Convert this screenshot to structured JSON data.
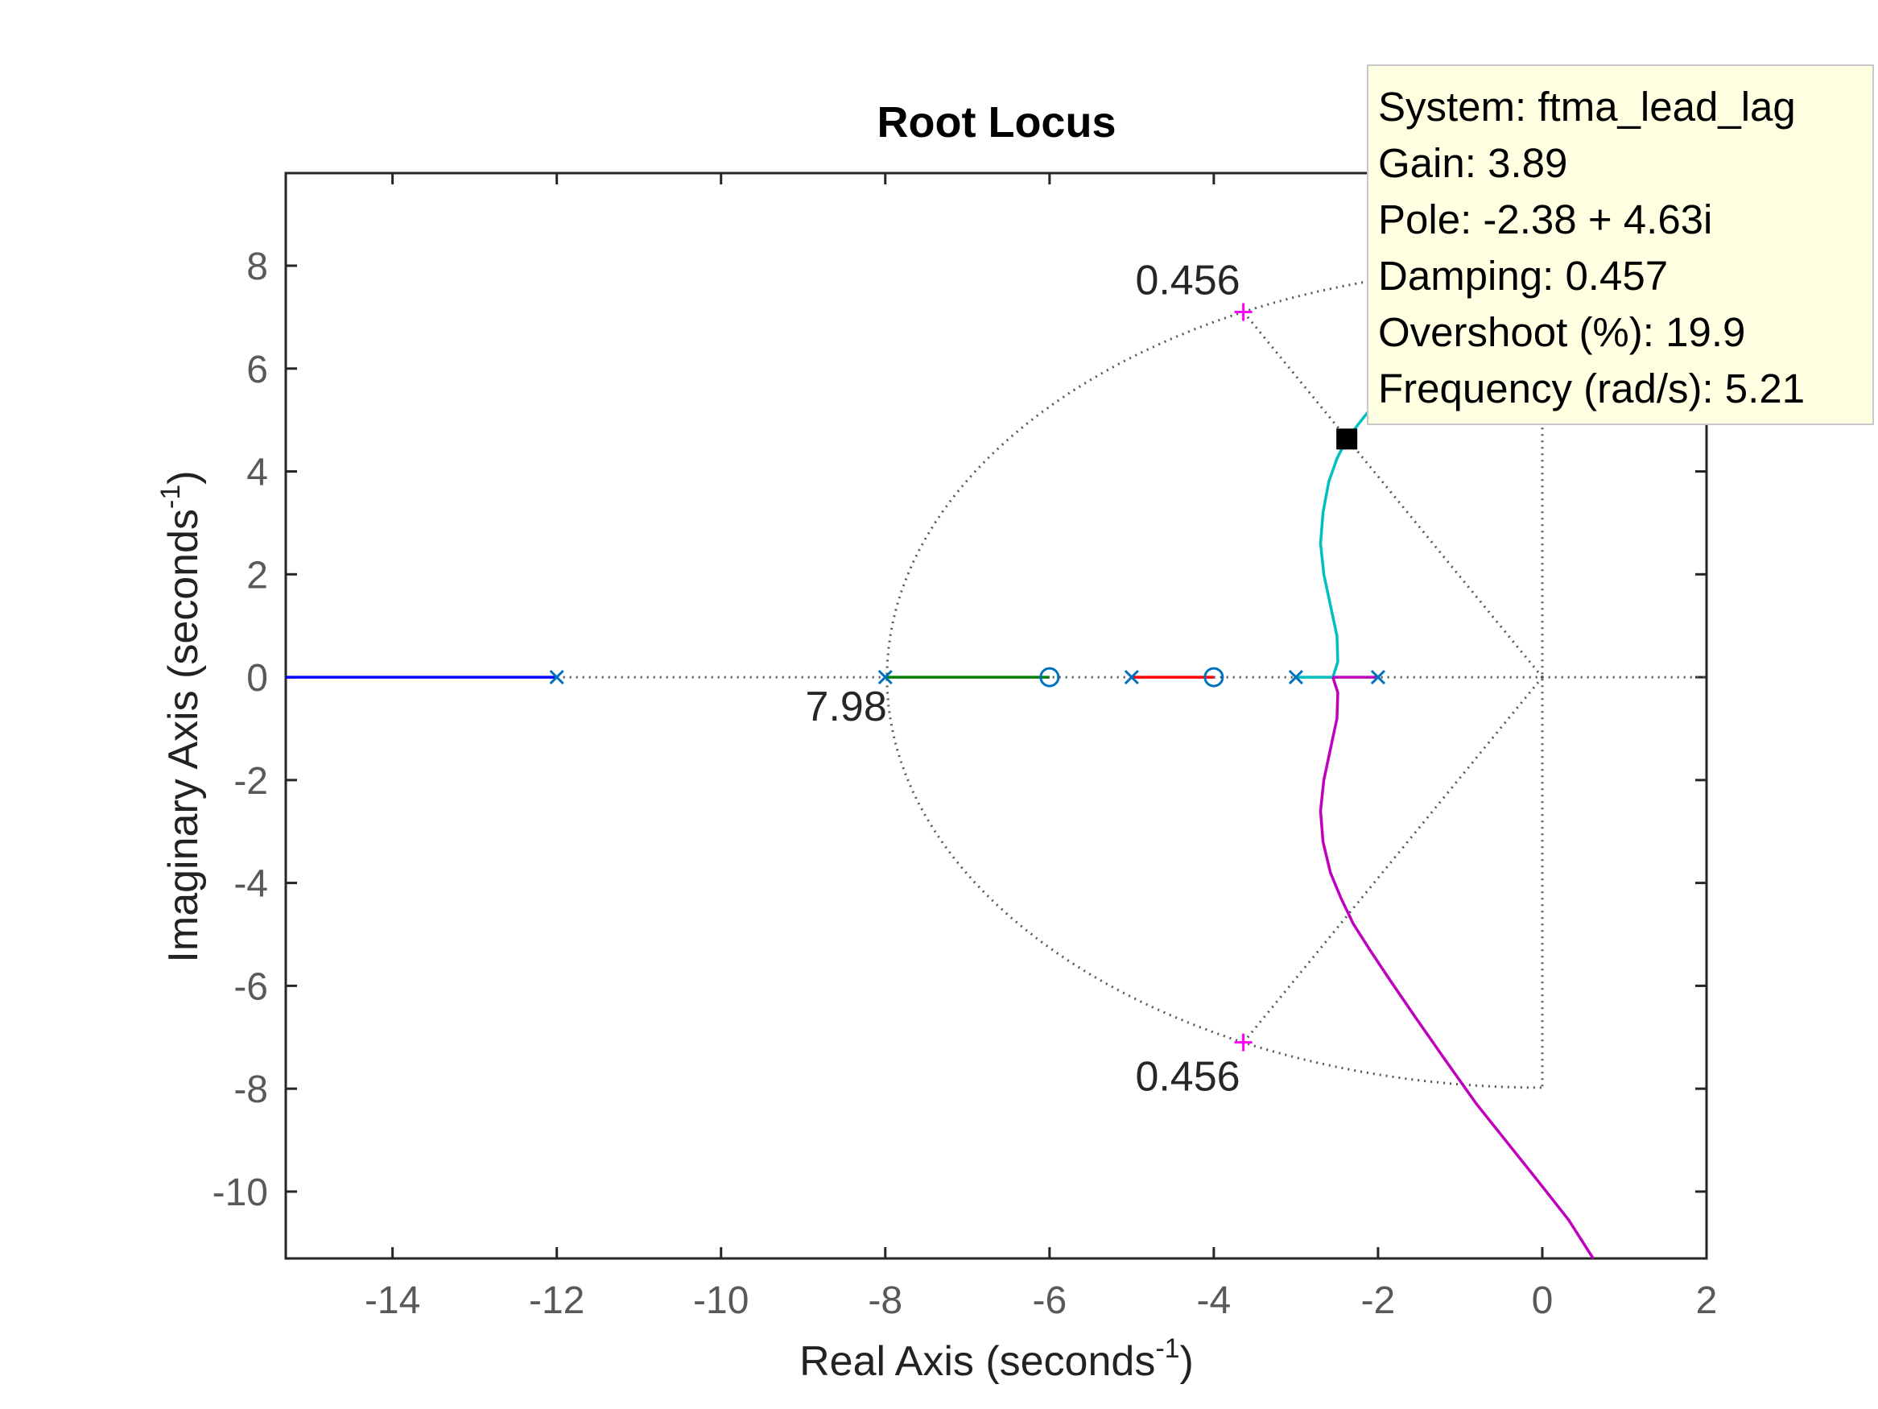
{
  "chart_data": {
    "type": "line",
    "title": "Root Locus",
    "xlabel": "Real Axis (seconds",
    "xlabel_sup": "-1",
    "xlabel_close": ")",
    "ylabel": "Imaginary Axis (seconds",
    "ylabel_sup": "-1",
    "ylabel_close": ")",
    "xlim": [
      -15.3,
      2
    ],
    "ylim": [
      -11.3,
      9.8
    ],
    "xticks": [
      -14,
      -12,
      -10,
      -8,
      -6,
      -4,
      -2,
      0,
      2
    ],
    "xtick_labels": [
      "-14",
      "-12",
      "-10",
      "-8",
      "-6",
      "-4",
      "-2",
      "0",
      "2"
    ],
    "yticks": [
      8,
      6,
      4,
      2,
      0,
      -2,
      -4,
      -6,
      -8,
      -10
    ],
    "ytick_labels": [
      "8",
      "6",
      "4",
      "2",
      "0",
      "-2",
      "-4",
      "-6",
      "-8",
      "-10"
    ],
    "poles": [
      [
        -12,
        0
      ],
      [
        -8,
        0
      ],
      [
        -5,
        0
      ],
      [
        -3,
        0
      ],
      [
        -2,
        0
      ]
    ],
    "zeros": [
      [
        -6,
        0
      ],
      [
        -4,
        0
      ]
    ],
    "design_points": [
      [
        -3.64,
        7.1
      ],
      [
        -3.64,
        -7.1
      ]
    ],
    "selected_point": [
      -2.38,
      4.63
    ],
    "series": [
      {
        "color": "#0000ff",
        "x": [
          -15.3,
          -12
        ],
        "y": [
          0,
          0
        ]
      },
      {
        "color": "#008000",
        "x": [
          -8,
          -6
        ],
        "y": [
          0,
          0
        ]
      },
      {
        "color": "#ff0000",
        "x": [
          -5,
          -4
        ],
        "y": [
          0,
          0
        ]
      },
      {
        "color": "#00bfbf",
        "x": [
          -3,
          -2.55,
          -2.49,
          -2.5,
          -2.58,
          -2.66,
          -2.7,
          -2.67,
          -2.6,
          -2.5,
          -2.38,
          -2.2,
          -2.0,
          -1.8
        ],
        "y": [
          0,
          0,
          0.3,
          0.8,
          1.4,
          2.0,
          2.6,
          3.2,
          3.8,
          4.25,
          4.63,
          5.0,
          5.4,
          5.8
        ]
      },
      {
        "color": "#bf00bf",
        "x": [
          -2,
          -2.55
        ],
        "y": [
          0,
          0
        ]
      },
      {
        "color": "#bf00bf",
        "x": [
          -2.55,
          -2.49,
          -2.5,
          -2.58,
          -2.66,
          -2.7,
          -2.67,
          -2.58,
          -2.45,
          -2.3,
          -2.1,
          -1.85,
          -1.55,
          -1.2,
          -0.8,
          -0.4,
          0.0,
          0.32,
          0.62
        ],
        "y": [
          0,
          -0.3,
          -0.8,
          -1.4,
          -2.0,
          -2.6,
          -3.2,
          -3.8,
          -4.3,
          -4.8,
          -5.3,
          -5.9,
          -6.6,
          -7.4,
          -8.3,
          -9.1,
          -9.9,
          -10.55,
          -11.3
        ]
      }
    ],
    "grid_constraints": {
      "damping": 0.456,
      "natural_frequency": 7.98,
      "damping_label": "0.456",
      "frequency_label": "7.98"
    },
    "datatip": {
      "system": "System: ftma_lead_lag",
      "gain": "Gain: 3.89",
      "pole": "Pole: -2.38 + 4.63i",
      "damping": "Damping: 0.457",
      "overshoot": "Overshoot (%): 19.9",
      "frequency": "Frequency (rad/s): 5.21"
    }
  }
}
